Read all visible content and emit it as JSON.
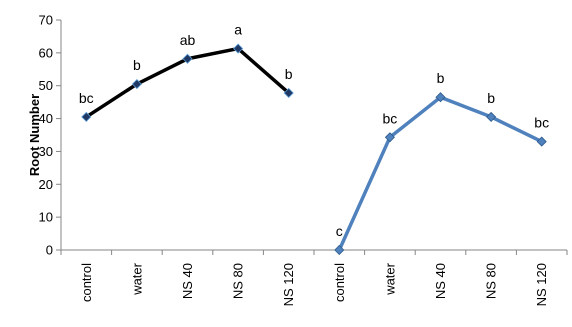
{
  "chart_data": {
    "type": "line",
    "title": "",
    "xlabel": "",
    "ylabel": "Root Number",
    "ylim": [
      0,
      70
    ],
    "yticks": [
      0,
      10,
      20,
      30,
      40,
      50,
      60,
      70
    ],
    "grid": false,
    "legend": "none",
    "categories": [
      "control",
      "water",
      "NS 40",
      "NS 80",
      "NS 120",
      "control",
      "water",
      "NS 40",
      "NS 80",
      "NS 120"
    ],
    "series": [
      {
        "color": "#000000",
        "marker_fill": "#1F3864",
        "values": [
          40.5,
          50.5,
          58.2,
          61.3,
          47.8,
          null,
          null,
          null,
          null,
          null
        ],
        "labels": [
          "bc",
          "b",
          "ab",
          "a",
          "b",
          null,
          null,
          null,
          null,
          null
        ]
      },
      {
        "color": "#4F81BD",
        "marker_fill": "#4F81BD",
        "values": [
          null,
          null,
          null,
          null,
          null,
          0,
          34.3,
          46.5,
          40.5,
          33.0
        ],
        "labels": [
          null,
          null,
          null,
          null,
          null,
          "c",
          "bc",
          "b",
          "b",
          "bc"
        ]
      }
    ]
  }
}
